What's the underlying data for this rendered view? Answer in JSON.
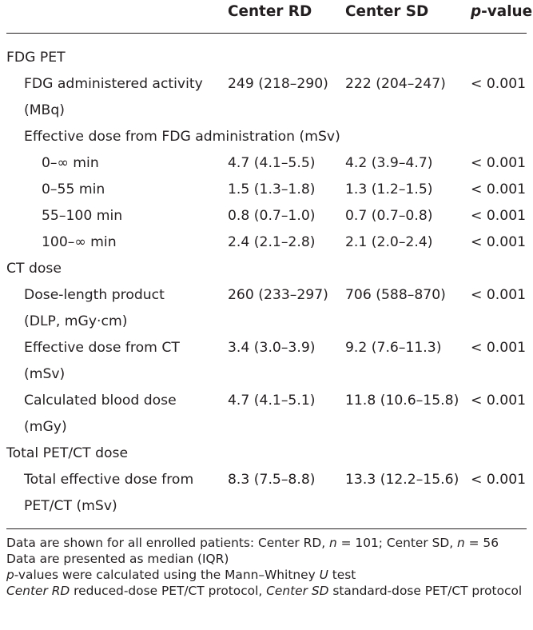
{
  "header": {
    "col_rd": "Center RD",
    "col_sd": "Center SD",
    "col_p_italic": "p",
    "col_p_rest": "-value"
  },
  "rows": [
    {
      "label": "FDG PET",
      "rd": "",
      "sd": "",
      "p": ""
    },
    {
      "label": "FDG administered activity",
      "rd": "249 (218–290)",
      "sd": "222 (204–247)",
      "p": "< 0.001"
    },
    {
      "label": "(MBq)",
      "rd": "",
      "sd": "",
      "p": ""
    },
    {
      "label": "Effective dose from FDG administration (mSv)",
      "rd": "",
      "sd": "",
      "p": ""
    },
    {
      "label": "0–∞ min",
      "rd": "4.7 (4.1–5.5)",
      "sd": "4.2 (3.9–4.7)",
      "p": "< 0.001"
    },
    {
      "label": "0–55 min",
      "rd": "1.5 (1.3–1.8)",
      "sd": "1.3 (1.2–1.5)",
      "p": "< 0.001"
    },
    {
      "label": "55–100 min",
      "rd": "0.8 (0.7–1.0)",
      "sd": "0.7 (0.7–0.8)",
      "p": "< 0.001"
    },
    {
      "label": "100–∞ min",
      "rd": "2.4 (2.1–2.8)",
      "sd": "2.1 (2.0–2.4)",
      "p": "< 0.001"
    },
    {
      "label": "CT dose",
      "rd": "",
      "sd": "",
      "p": ""
    },
    {
      "label": "Dose-length product",
      "rd": "260 (233–297)",
      "sd": "706 (588–870)",
      "p": "< 0.001"
    },
    {
      "label": "(DLP, mGy·cm)",
      "rd": "",
      "sd": "",
      "p": ""
    },
    {
      "label": "Effective dose from CT",
      "rd": "3.4 (3.0–3.9)",
      "sd": "9.2 (7.6–11.3)",
      "p": "< 0.001"
    },
    {
      "label": "(mSv)",
      "rd": "",
      "sd": "",
      "p": ""
    },
    {
      "label": "Calculated blood dose",
      "rd": "4.7 (4.1–5.1)",
      "sd": "11.8 (10.6–15.8)",
      "p": "< 0.001"
    },
    {
      "label": "(mGy)",
      "rd": "",
      "sd": "",
      "p": ""
    },
    {
      "label": "Total PET/CT dose",
      "rd": "",
      "sd": "",
      "p": ""
    },
    {
      "label": "Total effective dose from",
      "rd": "8.3 (7.5–8.8)",
      "sd": "13.3 (12.2–15.6)",
      "p": "< 0.001"
    },
    {
      "label": "PET/CT (mSv)",
      "rd": "",
      "sd": "",
      "p": ""
    }
  ],
  "notes": {
    "line1_a": "Data are shown for all enrolled patients: Center RD, ",
    "line1_n1": "n",
    "line1_b": " = 101; Center SD, ",
    "line1_n2": "n",
    "line1_c": " = 56",
    "line2": "Data are presented as median (IQR)",
    "line3_p": "p",
    "line3_a": "-values were calculated using the Mann–Whitney ",
    "line3_u": "U",
    "line3_b": " test",
    "line4_rd": "Center RD",
    "line4_a": " reduced-dose PET/CT protocol, ",
    "line4_sd": "Center SD",
    "line4_b": " standard-dose PET/CT protocol"
  }
}
